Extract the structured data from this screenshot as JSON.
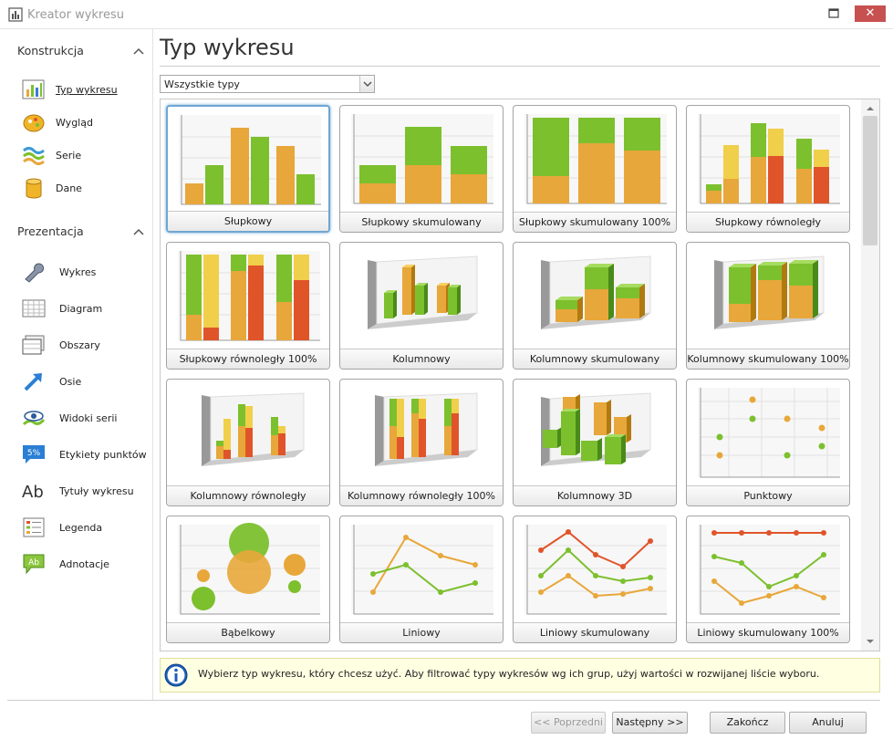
{
  "window": {
    "title": "Kreator wykresu",
    "close": "✕"
  },
  "sidebar": {
    "sections": [
      {
        "title": "Konstrukcja"
      },
      {
        "title": "Prezentacja"
      }
    ],
    "items": [
      {
        "label": "Typ wykresu",
        "icon": "chart-type-icon"
      },
      {
        "label": "Wygląd",
        "icon": "appearance-icon"
      },
      {
        "label": "Serie",
        "icon": "series-icon"
      },
      {
        "label": "Dane",
        "icon": "data-icon"
      },
      {
        "label": "Wykres",
        "icon": "wrench-icon"
      },
      {
        "label": "Diagram",
        "icon": "diagram-icon"
      },
      {
        "label": "Obszary",
        "icon": "panes-icon"
      },
      {
        "label": "Osie",
        "icon": "axes-icon"
      },
      {
        "label": "Widoki serii",
        "icon": "series-views-icon"
      },
      {
        "label": "Etykiety punktów",
        "icon": "point-labels-icon",
        "badge": "5%"
      },
      {
        "label": "Tytuły wykresu",
        "icon": "chart-titles-icon",
        "glyph": "Ab"
      },
      {
        "label": "Legenda",
        "icon": "legend-icon"
      },
      {
        "label": "Adnotacje",
        "icon": "annotations-icon",
        "glyph": "Ab"
      }
    ]
  },
  "main": {
    "title": "Typ wykresu",
    "filter": {
      "value": "Wszystkie typy"
    },
    "tiles": [
      {
        "label": "Słupkowy"
      },
      {
        "label": "Słupkowy skumulowany"
      },
      {
        "label": "Słupkowy skumulowany 100%"
      },
      {
        "label": "Słupkowy równoległy"
      },
      {
        "label": "Słupkowy równoległy 100%"
      },
      {
        "label": "Kolumnowy"
      },
      {
        "label": "Kolumnowy skumulowany"
      },
      {
        "label": "Kolumnowy skumulowany 100%"
      },
      {
        "label": "Kolumnowy równoległy"
      },
      {
        "label": "Kolumnowy równoległy 100%"
      },
      {
        "label": "Kolumnowy 3D"
      },
      {
        "label": "Punktowy"
      },
      {
        "label": "Bąbelkowy"
      },
      {
        "label": "Liniowy"
      },
      {
        "label": "Liniowy skumulowany"
      },
      {
        "label": "Liniowy skumulowany 100%"
      }
    ],
    "selected_index": 0,
    "info": "Wybierz typ wykresu, który chcesz użyć. Aby filtrować typy wykresów wg ich grup, użyj wartości w rozwijanej liście wyboru."
  },
  "footer": {
    "prev": "<< Poprzedni",
    "next": "Następny >>",
    "finish": "Zakończ",
    "cancel": "Anuluj"
  },
  "colors": {
    "green": "#7cc02e",
    "orange": "#e8a73a",
    "red": "#e0542a",
    "yellow": "#f0cf4a",
    "selection": "#6fa6d2",
    "info_bg": "#ffffe2",
    "close_bg": "#c75050"
  }
}
